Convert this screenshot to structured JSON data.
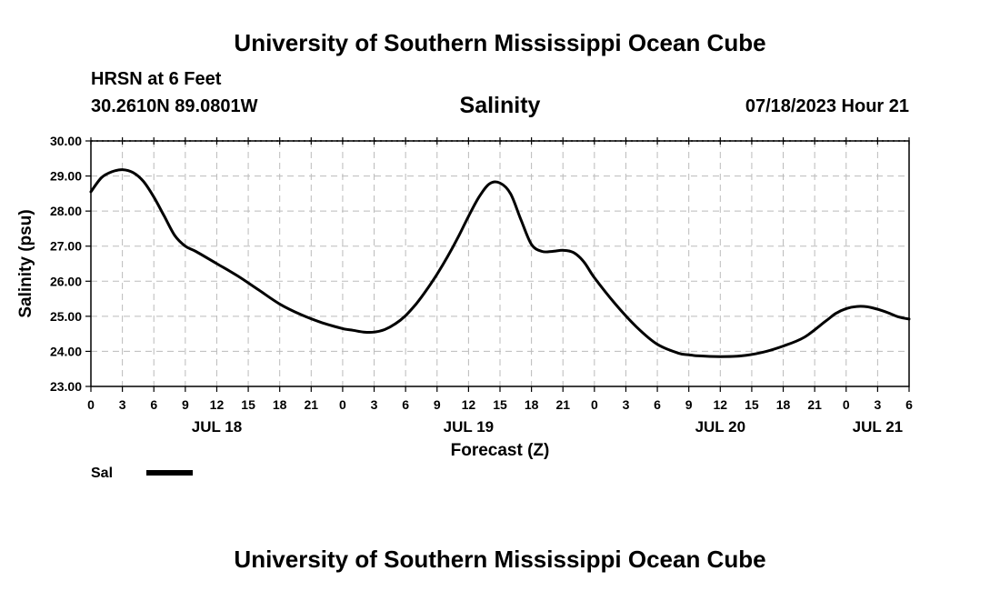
{
  "page": {
    "top_title": "University of Southern Mississippi Ocean Cube",
    "bottom_title": "University of Southern Mississippi Ocean Cube",
    "station": "HRSN at 6 Feet",
    "coords": "30.2610N  89.0801W",
    "date_hour": "07/18/2023 Hour 21"
  },
  "chart_data": {
    "type": "line",
    "title": "Salinity",
    "xlabel": "Forecast (Z)",
    "ylabel": "Salinity (psu)",
    "ylim": [
      23.0,
      30.0
    ],
    "y_ticks": [
      "23.00",
      "24.00",
      "25.00",
      "26.00",
      "27.00",
      "28.00",
      "29.00",
      "30.00"
    ],
    "xlim_hours": [
      0,
      78
    ],
    "x_tick_labels": [
      "0",
      "3",
      "6",
      "9",
      "12",
      "15",
      "18",
      "21",
      "0",
      "3",
      "6",
      "9",
      "12",
      "15",
      "18",
      "21",
      "0",
      "3",
      "6",
      "9",
      "12",
      "15",
      "18",
      "21",
      "0",
      "3",
      "6"
    ],
    "date_labels": [
      {
        "label": "JUL 18",
        "hour": 12
      },
      {
        "label": "JUL 19",
        "hour": 36
      },
      {
        "label": "JUL 20",
        "hour": 60
      },
      {
        "label": "JUL 21",
        "hour": 75
      }
    ],
    "grid": true,
    "legend_position": "bottom-left",
    "series": [
      {
        "name": "Sal",
        "color": "#000000",
        "x": [
          0,
          1,
          2,
          3,
          4,
          5,
          6,
          7,
          8,
          9,
          10,
          12,
          14,
          16,
          18,
          20,
          22,
          24,
          25,
          26,
          27,
          28,
          29,
          30,
          31,
          32,
          33,
          34,
          35,
          36,
          37,
          38,
          39,
          40,
          41,
          42,
          43,
          44,
          45,
          46,
          47,
          48,
          50,
          52,
          54,
          56,
          57,
          58,
          60,
          62,
          64,
          66,
          68,
          70,
          71,
          72,
          73,
          74,
          75,
          76,
          77,
          78
        ],
        "values": [
          28.55,
          28.95,
          29.12,
          29.18,
          29.1,
          28.85,
          28.4,
          27.85,
          27.3,
          27.0,
          26.85,
          26.5,
          26.15,
          25.75,
          25.35,
          25.05,
          24.82,
          24.65,
          24.6,
          24.55,
          24.55,
          24.62,
          24.78,
          25.02,
          25.35,
          25.75,
          26.2,
          26.7,
          27.25,
          27.85,
          28.4,
          28.78,
          28.8,
          28.5,
          27.75,
          27.05,
          26.85,
          26.85,
          26.88,
          26.82,
          26.55,
          26.1,
          25.35,
          24.7,
          24.2,
          23.95,
          23.9,
          23.87,
          23.85,
          23.87,
          23.97,
          24.15,
          24.4,
          24.85,
          25.08,
          25.22,
          25.28,
          25.27,
          25.2,
          25.1,
          24.98,
          24.92
        ]
      }
    ]
  }
}
